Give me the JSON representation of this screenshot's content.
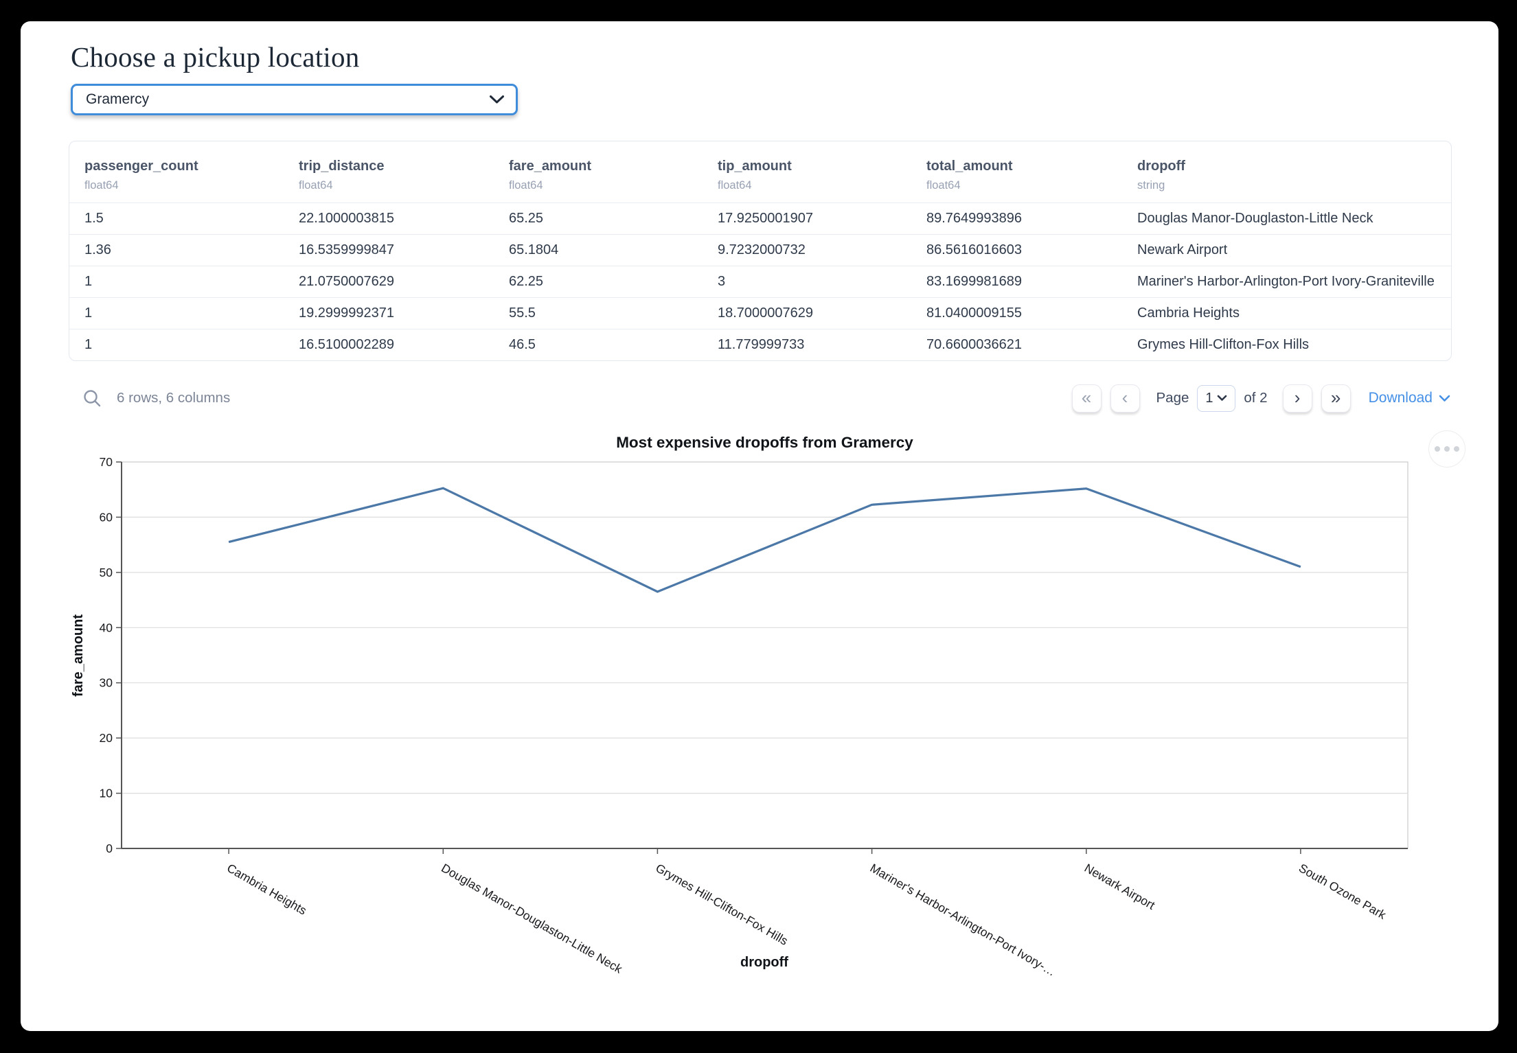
{
  "header": {
    "title": "Choose a pickup location"
  },
  "pickup_select": {
    "value": "Gramercy"
  },
  "table": {
    "columns": [
      {
        "name": "passenger_count",
        "type": "float64"
      },
      {
        "name": "trip_distance",
        "type": "float64"
      },
      {
        "name": "fare_amount",
        "type": "float64"
      },
      {
        "name": "tip_amount",
        "type": "float64"
      },
      {
        "name": "total_amount",
        "type": "float64"
      },
      {
        "name": "dropoff",
        "type": "string"
      }
    ],
    "rows": [
      [
        "1.5",
        "22.1000003815",
        "65.25",
        "17.9250001907",
        "89.7649993896",
        "Douglas Manor-Douglaston-Little Neck"
      ],
      [
        "1.36",
        "16.5359999847",
        "65.1804",
        "9.7232000732",
        "86.5616016603",
        "Newark Airport"
      ],
      [
        "1",
        "21.0750007629",
        "62.25",
        "3",
        "83.1699981689",
        "Mariner's Harbor-Arlington-Port Ivory-Graniteville"
      ],
      [
        "1",
        "19.2999992371",
        "55.5",
        "18.7000007629",
        "81.0400009155",
        "Cambria Heights"
      ],
      [
        "1",
        "16.5100002289",
        "46.5",
        "11.779999733",
        "70.6600036621",
        "Grymes Hill-Clifton-Fox Hills"
      ]
    ],
    "summary": "6 rows, 6 columns"
  },
  "pagination": {
    "first_icon": "«",
    "prev_icon": "‹",
    "next_icon": "›",
    "last_icon": "»",
    "page_label": "Page",
    "current_page": "1",
    "of_label": "of 2",
    "download_label": "Download"
  },
  "chart_data": {
    "type": "line",
    "title": "Most expensive dropoffs from Gramercy",
    "xlabel": "dropoff",
    "ylabel": "fare_amount",
    "categories": [
      "Cambria Heights",
      "Douglas Manor-Douglaston-Little Neck",
      "Grymes Hill-Clifton-Fox Hills",
      "Mariner's Harbor-Arlington-Port Ivory-Graniteville",
      "Newark Airport",
      "South Ozone Park"
    ],
    "tick_labels": [
      "Cambria Heights",
      "Douglas Manor-Douglaston-Little Neck",
      "Grymes Hill-Clifton-Fox Hills",
      "Mariner's Harbor-Arlington-Port Ivory-…",
      "Newark Airport",
      "South Ozone Park"
    ],
    "values": [
      55.5,
      65.25,
      46.5,
      62.25,
      65.1804,
      51
    ],
    "ylim": [
      0,
      70
    ],
    "yticks": [
      0,
      10,
      20,
      30,
      40,
      50,
      60,
      70
    ],
    "grid": true,
    "legend": "none",
    "line_color": "#4C78A8"
  },
  "colors": {
    "select_focus_border": "#3f8cdb",
    "link_blue": "#4590e6",
    "line_blue": "#4C78A8",
    "header_text": "#4a5568",
    "muted_text": "#98a1b3"
  }
}
